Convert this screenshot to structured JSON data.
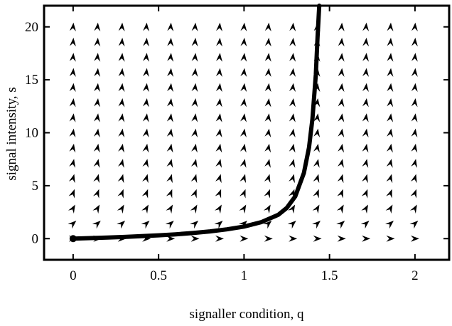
{
  "chart_data": {
    "type": "vector_field",
    "xlabel": "signaller condition, q",
    "ylabel": "signal intensity, s",
    "xlim": [
      -0.17,
      2.2
    ],
    "ylim": [
      -2,
      22
    ],
    "x_ticks": [
      0,
      0.5,
      1,
      1.5,
      2
    ],
    "x_tick_labels": [
      "0",
      "0.5",
      "1",
      "1.5",
      "2"
    ],
    "y_ticks": [
      0,
      5,
      10,
      15,
      20
    ],
    "y_tick_labels": [
      "0",
      "5",
      "10",
      "15",
      "20"
    ],
    "grid": false,
    "field": {
      "x": [
        0,
        0.143,
        0.286,
        0.429,
        0.571,
        0.714,
        0.857,
        1.0,
        1.143,
        1.286,
        1.429,
        1.571,
        1.714,
        1.857,
        2.0
      ],
      "y": [
        0,
        1.43,
        2.86,
        4.29,
        5.71,
        7.14,
        8.57,
        10.0,
        11.43,
        12.86,
        14.29,
        15.71,
        17.14,
        18.57,
        20.0
      ],
      "direction_rule": "vertical (upward) at high s, turning to horizontal (rightward) as s approaches 0"
    },
    "series": [
      {
        "type": "line",
        "x": [
          0,
          0.1,
          0.2,
          0.3,
          0.4,
          0.5,
          0.6,
          0.7,
          0.8,
          0.9,
          1.0,
          1.1,
          1.2,
          1.25,
          1.3,
          1.35,
          1.38,
          1.4,
          1.42,
          1.43,
          1.44
        ],
        "y": [
          0,
          0.05,
          0.1,
          0.16,
          0.23,
          0.31,
          0.41,
          0.53,
          0.68,
          0.88,
          1.14,
          1.55,
          2.25,
          2.9,
          4.0,
          6.2,
          8.6,
          11.3,
          15.5,
          19.0,
          22.0
        ]
      }
    ],
    "start_point": {
      "x": 0,
      "y": 0
    }
  }
}
